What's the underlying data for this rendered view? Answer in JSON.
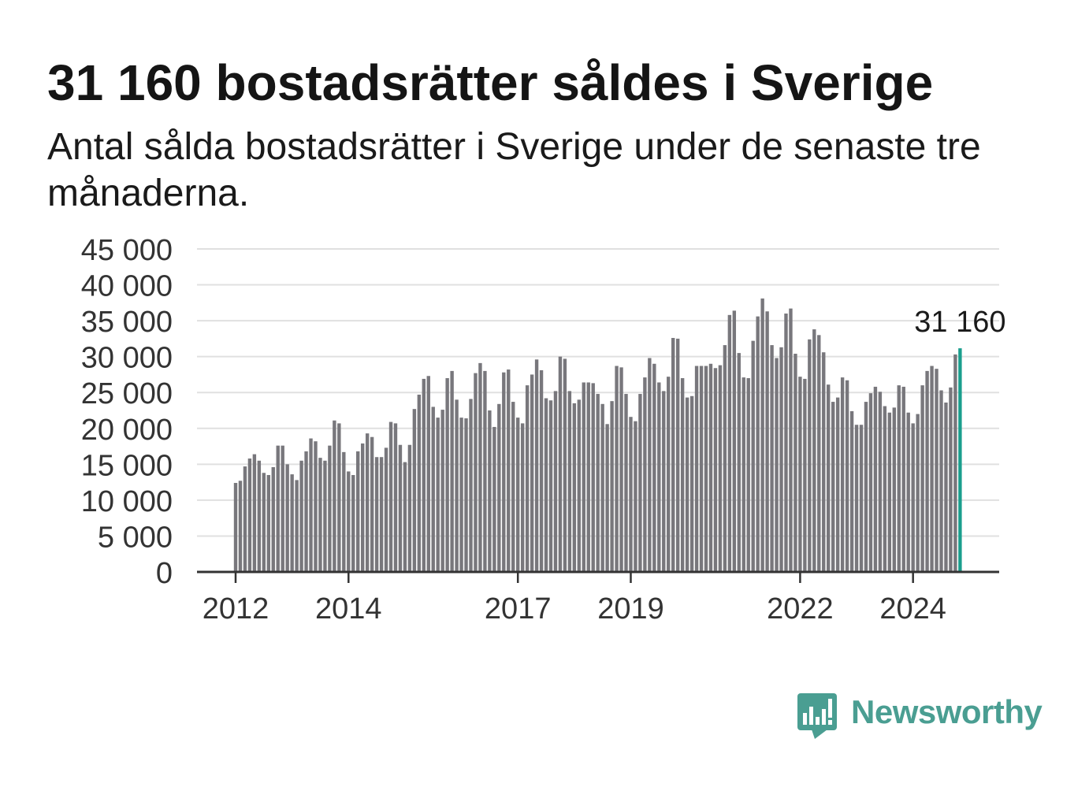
{
  "colors": {
    "bar": "#78777c",
    "highlight": "#1a9e8d",
    "grid": "#e0e0e0",
    "axis": "#333333",
    "brand": "#4a9e92"
  },
  "logo": {
    "text": "Newsworthy",
    "icon": "newsworthy-logo-icon"
  },
  "chart_data": {
    "type": "bar",
    "title": "31 160 bostadsrätter såldes i Sverige",
    "subtitle": "Antal sålda bostadsrätter i Sverige under de senaste tre månaderna.",
    "x": [
      "2012-01",
      "2012-02",
      "2012-03",
      "2012-04",
      "2012-05",
      "2012-06",
      "2012-07",
      "2012-08",
      "2012-09",
      "2012-10",
      "2012-11",
      "2012-12",
      "2013-01",
      "2013-02",
      "2013-03",
      "2013-04",
      "2013-05",
      "2013-06",
      "2013-07",
      "2013-08",
      "2013-09",
      "2013-10",
      "2013-11",
      "2013-12",
      "2014-01",
      "2014-02",
      "2014-03",
      "2014-04",
      "2014-05",
      "2014-06",
      "2014-07",
      "2014-08",
      "2014-09",
      "2014-10",
      "2014-11",
      "2014-12",
      "2015-01",
      "2015-02",
      "2015-03",
      "2015-04",
      "2015-05",
      "2015-06",
      "2015-07",
      "2015-08",
      "2015-09",
      "2015-10",
      "2015-11",
      "2015-12",
      "2016-01",
      "2016-02",
      "2016-03",
      "2016-04",
      "2016-05",
      "2016-06",
      "2016-07",
      "2016-08",
      "2016-09",
      "2016-10",
      "2016-11",
      "2016-12",
      "2017-01",
      "2017-02",
      "2017-03",
      "2017-04",
      "2017-05",
      "2017-06",
      "2017-07",
      "2017-08",
      "2017-09",
      "2017-10",
      "2017-11",
      "2017-12",
      "2018-01",
      "2018-02",
      "2018-03",
      "2018-04",
      "2018-05",
      "2018-06",
      "2018-07",
      "2018-08",
      "2018-09",
      "2018-10",
      "2018-11",
      "2018-12",
      "2019-01",
      "2019-02",
      "2019-03",
      "2019-04",
      "2019-05",
      "2019-06",
      "2019-07",
      "2019-08",
      "2019-09",
      "2019-10",
      "2019-11",
      "2019-12",
      "2020-01",
      "2020-02",
      "2020-03",
      "2020-04",
      "2020-05",
      "2020-06",
      "2020-07",
      "2020-08",
      "2020-09",
      "2020-10",
      "2020-11",
      "2020-12",
      "2021-01",
      "2021-02",
      "2021-03",
      "2021-04",
      "2021-05",
      "2021-06",
      "2021-07",
      "2021-08",
      "2021-09",
      "2021-10",
      "2021-11",
      "2021-12",
      "2022-01",
      "2022-02",
      "2022-03",
      "2022-04",
      "2022-05",
      "2022-06",
      "2022-07",
      "2022-08",
      "2022-09",
      "2022-10",
      "2022-11",
      "2022-12",
      "2023-01",
      "2023-02",
      "2023-03",
      "2023-04",
      "2023-05",
      "2023-06",
      "2023-07",
      "2023-08",
      "2023-09",
      "2023-10",
      "2023-11",
      "2023-12",
      "2024-01",
      "2024-02",
      "2024-03",
      "2024-04",
      "2024-05",
      "2024-06",
      "2024-07",
      "2024-08",
      "2024-09",
      "2024-10",
      "2024-11"
    ],
    "values": [
      12400,
      12700,
      14700,
      15800,
      16400,
      15500,
      13800,
      13500,
      14600,
      17600,
      17600,
      15000,
      13600,
      12800,
      15500,
      16800,
      18600,
      18200,
      15900,
      15500,
      17600,
      21100,
      20700,
      16700,
      14000,
      13500,
      16800,
      17900,
      19300,
      18800,
      16000,
      16000,
      17300,
      20900,
      20700,
      17700,
      15300,
      17700,
      22700,
      24700,
      26900,
      27300,
      23000,
      21500,
      22600,
      27000,
      28000,
      24000,
      21500,
      21400,
      24100,
      27700,
      29100,
      28000,
      22500,
      20200,
      23400,
      27800,
      28200,
      23700,
      21500,
      20700,
      26000,
      27500,
      29600,
      28100,
      24200,
      23900,
      25200,
      30000,
      29700,
      25200,
      23500,
      24000,
      26400,
      26400,
      26300,
      24800,
      23400,
      20600,
      23800,
      28700,
      28500,
      24800,
      21600,
      21000,
      24800,
      27100,
      29800,
      29000,
      26400,
      25200,
      27200,
      32600,
      32500,
      27000,
      24300,
      24500,
      28700,
      28700,
      28700,
      29000,
      28400,
      28800,
      31600,
      35800,
      36400,
      30500,
      27100,
      27000,
      32200,
      35600,
      38100,
      36300,
      31600,
      29800,
      31300,
      36000,
      36700,
      30400,
      27200,
      26900,
      32400,
      33800,
      33000,
      30600,
      26100,
      23700,
      24300,
      27100,
      26700,
      22400,
      20500,
      20500,
      23700,
      24900,
      25800,
      25100,
      23100,
      22200,
      22900,
      26000,
      25800,
      22200,
      20700,
      22000,
      26000,
      28000,
      28700,
      28300,
      25300,
      23600,
      25700,
      30300,
      31160
    ],
    "xtick_labels": [
      "2012",
      "2014",
      "2017",
      "2019",
      "2022",
      "2024"
    ],
    "yticks": [
      0,
      5000,
      10000,
      15000,
      20000,
      25000,
      30000,
      35000,
      40000,
      45000
    ],
    "ytick_labels": [
      "0",
      "5 000",
      "10 000",
      "15 000",
      "20 000",
      "25 000",
      "30 000",
      "35 000",
      "40 000",
      "45 000"
    ],
    "ylim": [
      0,
      45000
    ],
    "grid": true,
    "legend": "none",
    "highlight": {
      "x": "2024-11",
      "label": "31 160"
    }
  }
}
